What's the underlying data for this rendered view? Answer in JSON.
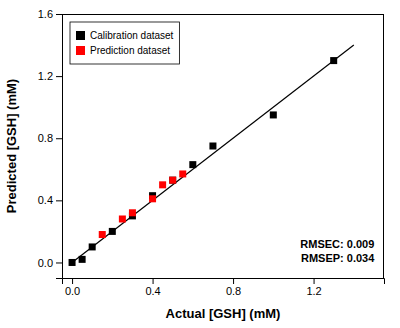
{
  "chart_data": {
    "type": "scatter",
    "xlabel": "Actual [GSH] (mM)",
    "ylabel": "Predicted [GSH] (mM)",
    "series": [
      {
        "type": "line",
        "color": "#000000",
        "line_style": "solid",
        "x": [
          0.0,
          1.4
        ],
        "values": [
          0.0,
          1.4
        ]
      },
      {
        "name": "Calibration dataset",
        "type": "scatter",
        "color": "#000000",
        "marker": "square",
        "x": [
          0.0,
          0.05,
          0.1,
          0.2,
          0.3,
          0.4,
          0.5,
          0.6,
          0.7,
          1.0,
          1.3
        ],
        "values": [
          0.0,
          0.02,
          0.1,
          0.2,
          0.3,
          0.43,
          0.53,
          0.63,
          0.75,
          0.95,
          1.3
        ]
      },
      {
        "name": "Prediction dataset",
        "type": "scatter",
        "color": "#ff0000",
        "marker": "square",
        "x": [
          0.15,
          0.25,
          0.3,
          0.4,
          0.45,
          0.5,
          0.55
        ],
        "values": [
          0.18,
          0.28,
          0.32,
          0.41,
          0.5,
          0.53,
          0.57
        ]
      }
    ],
    "xlim": [
      -0.05,
      1.55
    ],
    "ylim": [
      -0.1,
      1.6
    ],
    "xticks": [
      {
        "value": 0.0,
        "label": "0.0"
      },
      0.4,
      0.8,
      1.2
    ],
    "yticks": [
      {
        "value": 0.0,
        "label": "0.0"
      },
      0.4,
      0.8,
      1.2,
      1.6
    ],
    "annotations": [
      "RMSEC: 0.009",
      "RMSEP: 0.034"
    ],
    "legend": "upper left",
    "grid": false
  }
}
